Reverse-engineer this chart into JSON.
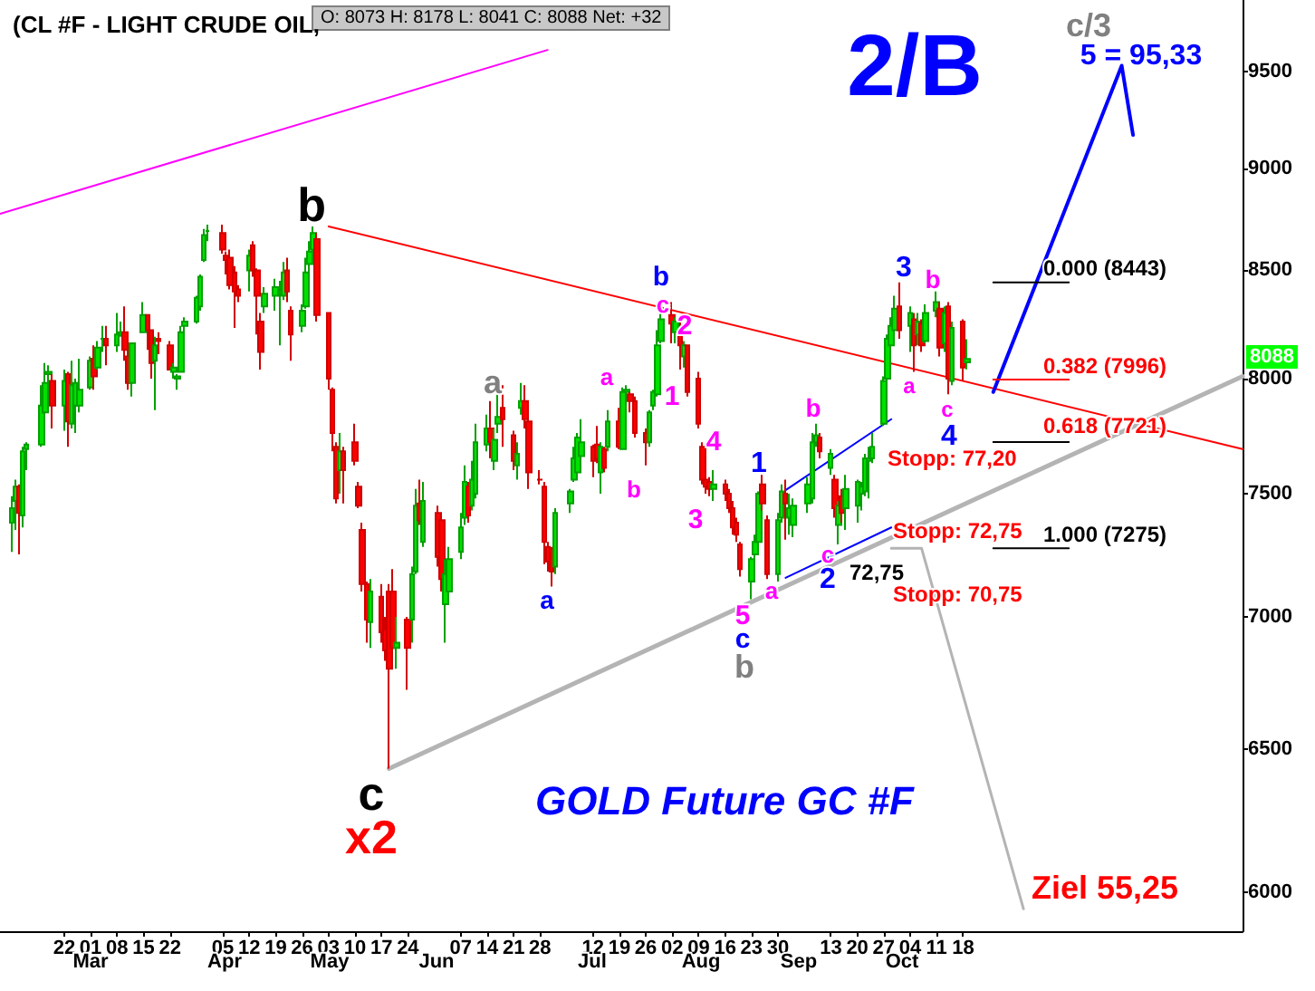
{
  "chart_data": {
    "type": "candlestick",
    "title": "(CL #F - LIGHT CRUDE OIL,",
    "subtitle": "O: 8073 H: 8178 L: 8041 C: 8088 Net: +32",
    "log": "y",
    "xlim": [
      "--02-05",
      "--12-31"
    ],
    "ylim": [
      5870,
      9890
    ],
    "yticks": [
      6000,
      6500,
      7000,
      7500,
      8000,
      8500,
      9000,
      9500
    ],
    "xticks": [
      {
        "value": "--02-22",
        "label": "22"
      },
      {
        "value": "--03-01",
        "label": "01"
      },
      {
        "value": "--03-08",
        "label": "08"
      },
      {
        "value": "--03-15",
        "label": "15"
      },
      {
        "value": "--03-22",
        "label": "22"
      },
      {
        "value": "--04-05",
        "label": "05"
      },
      {
        "value": "--04-12",
        "label": "12"
      },
      {
        "value": "--04-19",
        "label": "19"
      },
      {
        "value": "--04-26",
        "label": "26"
      },
      {
        "value": "--05-03",
        "label": "03"
      },
      {
        "value": "--05-10",
        "label": "10"
      },
      {
        "value": "--05-17",
        "label": "17"
      },
      {
        "value": "--05-24",
        "label": "24"
      },
      {
        "value": "--06-07",
        "label": "07"
      },
      {
        "value": "--06-14",
        "label": "14"
      },
      {
        "value": "--06-21",
        "label": "21"
      },
      {
        "value": "--06-28",
        "label": "28"
      },
      {
        "value": "--07-12",
        "label": "12"
      },
      {
        "value": "--07-19",
        "label": "19"
      },
      {
        "value": "--07-26",
        "label": "26"
      },
      {
        "value": "--08-02",
        "label": "02"
      },
      {
        "value": "--08-09",
        "label": "09"
      },
      {
        "value": "--08-16",
        "label": "16"
      },
      {
        "value": "--08-23",
        "label": "23"
      },
      {
        "value": "--08-30",
        "label": "30"
      },
      {
        "value": "--09-13",
        "label": "13"
      },
      {
        "value": "--09-20",
        "label": "20"
      },
      {
        "value": "--09-27",
        "label": "27"
      },
      {
        "value": "--10-04",
        "label": "04"
      },
      {
        "value": "--10-11",
        "label": "11"
      },
      {
        "value": "--10-18",
        "label": "18"
      }
    ],
    "x": [
      "--02-08",
      "--02-09",
      "--02-10",
      "--02-11",
      "--02-12",
      "--02-16",
      "--02-17",
      "--02-18",
      "--02-19",
      "--02-22",
      "--02-23",
      "--02-24",
      "--02-25",
      "--02-26",
      "--03-01",
      "--03-02",
      "--03-03",
      "--03-04",
      "--03-05",
      "--03-08",
      "--03-09",
      "--03-10",
      "--03-11",
      "--03-12",
      "--03-15",
      "--03-16",
      "--03-17",
      "--03-18",
      "--03-19",
      "--03-22",
      "--03-23",
      "--03-24",
      "--03-25",
      "--03-26",
      "--03-29",
      "--03-30",
      "--03-31",
      "--04-01",
      "--04-05",
      "--04-06",
      "--04-07",
      "--04-08",
      "--04-09",
      "--04-12",
      "--04-13",
      "--04-14",
      "--04-15",
      "--04-16",
      "--04-19",
      "--04-20",
      "--04-21",
      "--04-22",
      "--04-23",
      "--04-26",
      "--04-27",
      "--04-28",
      "--04-29",
      "--04-30",
      "--05-03",
      "--05-04",
      "--05-05",
      "--05-06",
      "--05-07",
      "--05-10",
      "--05-11",
      "--05-12",
      "--05-13",
      "--05-14",
      "--05-17",
      "--05-18",
      "--05-19",
      "--05-20",
      "--05-21",
      "--05-24",
      "--05-25",
      "--05-26",
      "--05-27",
      "--05-28",
      "--06-01",
      "--06-02",
      "--06-03",
      "--06-04",
      "--06-07",
      "--06-08",
      "--06-09",
      "--06-10",
      "--06-11",
      "--06-14",
      "--06-15",
      "--06-16",
      "--06-17",
      "--06-18",
      "--06-21",
      "--06-22",
      "--06-23",
      "--06-24",
      "--06-25",
      "--06-28",
      "--06-29",
      "--06-30",
      "--07-01",
      "--07-02",
      "--07-06",
      "--07-07",
      "--07-08",
      "--07-09",
      "--07-12",
      "--07-13",
      "--07-14",
      "--07-15",
      "--07-16",
      "--07-19",
      "--07-20",
      "--07-21",
      "--07-22",
      "--07-23",
      "--07-26",
      "--07-27",
      "--07-28",
      "--07-29",
      "--07-30",
      "--08-02",
      "--08-03",
      "--08-04",
      "--08-05",
      "--08-06",
      "--08-09",
      "--08-10",
      "--08-11",
      "--08-12",
      "--08-13",
      "--08-16",
      "--08-17",
      "--08-18",
      "--08-19",
      "--08-20",
      "--08-23",
      "--08-24",
      "--08-25",
      "--08-26",
      "--08-27",
      "--08-30",
      "--08-31",
      "--09-01",
      "--09-02",
      "--09-03",
      "--09-07",
      "--09-08",
      "--09-09",
      "--09-10",
      "--09-13",
      "--09-14",
      "--09-15",
      "--09-16",
      "--09-17",
      "--09-20",
      "--09-21",
      "--09-22",
      "--09-23",
      "--09-24",
      "--09-27",
      "--09-28",
      "--09-29",
      "--09-30",
      "--10-01",
      "--10-04",
      "--10-05",
      "--10-06",
      "--10-07",
      "--10-08",
      "--10-11",
      "--10-12",
      "--10-13",
      "--10-14",
      "--10-15",
      "--10-18",
      "--10-19"
    ],
    "ohlc": [
      [
        7380,
        7490,
        7260,
        7440
      ],
      [
        7470,
        7560,
        7350,
        7530
      ],
      [
        7530,
        7540,
        7250,
        7420
      ],
      [
        7410,
        7700,
        7360,
        7680
      ],
      [
        7690,
        7720,
        7600,
        7710
      ],
      [
        7710,
        7970,
        7700,
        7880
      ],
      [
        7850,
        8070,
        7750,
        7980
      ],
      [
        8020,
        8060,
        7950,
        8030
      ],
      [
        7990,
        8020,
        7780,
        7880
      ],
      [
        7880,
        8040,
        7770,
        7990
      ],
      [
        8020,
        8030,
        7700,
        7810
      ],
      [
        7800,
        8080,
        7780,
        7970
      ],
      [
        7880,
        8000,
        7760,
        7980
      ],
      [
        7880,
        8090,
        7850,
        7950
      ],
      [
        7960,
        8100,
        7950,
        8080
      ],
      [
        8090,
        8150,
        7950,
        8010
      ],
      [
        8050,
        8170,
        8040,
        8140
      ],
      [
        8180,
        8240,
        8120,
        8180
      ],
      [
        8180,
        8240,
        8060,
        8150
      ],
      [
        8150,
        8300,
        8120,
        8200
      ],
      [
        8200,
        8260,
        8190,
        8210
      ],
      [
        8210,
        8330,
        8080,
        8130
      ],
      [
        8100,
        8130,
        7950,
        7980
      ],
      [
        7980,
        8160,
        7920,
        8160
      ],
      [
        8210,
        8350,
        8210,
        8290
      ],
      [
        8290,
        8290,
        8130,
        8220
      ],
      [
        8220,
        8220,
        8000,
        8070
      ],
      [
        8080,
        8190,
        7860,
        8150
      ],
      [
        8180,
        8210,
        8110,
        8170
      ],
      [
        8150,
        8170,
        8040,
        8040
      ],
      [
        8030,
        8070,
        8000,
        8050
      ],
      [
        8000,
        8020,
        7950,
        8010
      ],
      [
        8030,
        8240,
        8030,
        8210
      ],
      [
        8240,
        8280,
        8170,
        8260
      ],
      [
        8260,
        8380,
        8250,
        8370
      ],
      [
        8330,
        8480,
        8310,
        8470
      ],
      [
        8550,
        8700,
        8540,
        8670
      ],
      [
        8690,
        8720,
        8640,
        8690
      ],
      [
        8680,
        8720,
        8580,
        8600
      ],
      [
        8570,
        8590,
        8480,
        8550
      ],
      [
        8560,
        8600,
        8410,
        8430
      ],
      [
        8490,
        8520,
        8230,
        8400
      ],
      [
        8410,
        8430,
        8350,
        8380
      ],
      [
        8500,
        8600,
        8400,
        8570
      ],
      [
        8620,
        8640,
        8470,
        8500
      ],
      [
        8500,
        8510,
        8200,
        8380
      ],
      [
        8260,
        8300,
        8040,
        8120
      ],
      [
        8330,
        8420,
        8300,
        8390
      ],
      [
        8380,
        8460,
        8310,
        8420
      ],
      [
        8390,
        8450,
        8150,
        8400
      ],
      [
        8380,
        8540,
        8360,
        8490
      ],
      [
        8500,
        8560,
        8350,
        8400
      ],
      [
        8310,
        8330,
        8080,
        8200
      ],
      [
        8240,
        8340,
        8210,
        8310
      ],
      [
        8330,
        8560,
        8320,
        8490
      ],
      [
        8530,
        8640,
        8490,
        8590
      ],
      [
        8600,
        8712,
        8570,
        8680
      ],
      [
        8650,
        8680,
        8260,
        8290
      ],
      [
        8300,
        8300,
        7950,
        8000
      ],
      [
        7950,
        7960,
        7680,
        7760
      ],
      [
        7700,
        7720,
        7460,
        7480
      ],
      [
        7600,
        7760,
        7500,
        7680
      ],
      [
        7680,
        7700,
        7460,
        7600
      ],
      [
        7720,
        7800,
        7620,
        7640
      ],
      [
        7530,
        7550,
        7440,
        7450
      ],
      [
        7350,
        7380,
        7100,
        7130
      ],
      [
        7130,
        7140,
        6900,
        6990
      ],
      [
        6980,
        7150,
        6880,
        7100
      ],
      [
        7080,
        7130,
        6900,
        6940
      ],
      [
        6950,
        7000,
        6830,
        6870
      ],
      [
        7100,
        7130,
        6430,
        6800
      ],
      [
        7100,
        7190,
        6800,
        6880
      ],
      [
        6880,
        7000,
        6800,
        6900
      ],
      [
        6990,
        7000,
        6720,
        6880
      ],
      [
        6990,
        7200,
        6900,
        7170
      ],
      [
        7180,
        7520,
        7170,
        7450
      ],
      [
        7460,
        7560,
        7370,
        7390
      ],
      [
        7300,
        7550,
        7280,
        7470
      ],
      [
        7420,
        7450,
        7200,
        7240
      ],
      [
        7390,
        7410,
        7100,
        7150
      ],
      [
        7050,
        7230,
        6900,
        7170
      ],
      [
        7100,
        7280,
        7050,
        7230
      ],
      [
        7260,
        7420,
        7230,
        7360
      ],
      [
        7400,
        7620,
        7370,
        7550
      ],
      [
        7530,
        7550,
        7380,
        7410
      ],
      [
        7450,
        7640,
        7430,
        7560
      ],
      [
        7500,
        7800,
        7480,
        7720
      ],
      [
        7710,
        7840,
        7680,
        7780
      ],
      [
        7780,
        7900,
        7650,
        7720
      ],
      [
        7640,
        7780,
        7600,
        7730
      ],
      [
        7800,
        7940,
        7760,
        7830
      ],
      [
        7870,
        7970,
        7700,
        7820
      ],
      [
        7750,
        7770,
        7600,
        7640
      ],
      [
        7620,
        7720,
        7560,
        7670
      ],
      [
        7870,
        7980,
        7840,
        7900
      ],
      [
        7900,
        7970,
        7780,
        7820
      ],
      [
        7810,
        7830,
        7520,
        7590
      ],
      [
        7560,
        7600,
        7540,
        7560
      ],
      [
        7530,
        7550,
        7210,
        7300
      ],
      [
        7280,
        7300,
        7180,
        7220
      ],
      [
        7270,
        7280,
        7120,
        7180
      ],
      [
        7200,
        7440,
        7170,
        7420
      ],
      [
        7460,
        7520,
        7420,
        7510
      ],
      [
        7560,
        7700,
        7550,
        7650
      ],
      [
        7590,
        7760,
        7560,
        7740
      ],
      [
        7660,
        7820,
        7600,
        7720
      ],
      [
        7700,
        7710,
        7570,
        7640
      ],
      [
        7710,
        7790,
        7630,
        7650
      ],
      [
        7590,
        7720,
        7500,
        7700
      ],
      [
        7690,
        7700,
        7590,
        7610
      ],
      [
        7700,
        7860,
        7680,
        7810
      ],
      [
        7810,
        7870,
        7690,
        7700
      ],
      [
        7690,
        7960,
        7690,
        7940
      ],
      [
        7940,
        7970,
        7900,
        7950
      ],
      [
        7930,
        7940,
        7850,
        7900
      ],
      [
        7900,
        7920,
        7740,
        7760
      ],
      [
        7760,
        7780,
        7620,
        7720
      ],
      [
        7720,
        7860,
        7700,
        7850
      ],
      [
        7880,
        7950,
        7860,
        7940
      ],
      [
        7930,
        8220,
        7920,
        8150
      ],
      [
        8170,
        8320,
        8160,
        8270
      ],
      [
        8290,
        8350,
        8160,
        8250
      ],
      [
        8210,
        8280,
        8160,
        8260
      ],
      [
        8200,
        8260,
        8040,
        8150
      ],
      [
        8100,
        8170,
        8050,
        8150
      ],
      [
        8150,
        8150,
        7920,
        7940
      ],
      [
        8000,
        8030,
        7780,
        7800
      ],
      [
        7700,
        7720,
        7540,
        7560
      ],
      [
        7560,
        7590,
        7500,
        7530
      ],
      [
        7550,
        7570,
        7490,
        7520
      ],
      [
        7520,
        7600,
        7470,
        7540
      ],
      [
        7540,
        7560,
        7470,
        7500
      ],
      [
        7500,
        7520,
        7420,
        7440
      ],
      [
        7440,
        7470,
        7330,
        7360
      ],
      [
        7380,
        7400,
        7300,
        7330
      ],
      [
        7290,
        7300,
        7160,
        7190
      ],
      [
        7140,
        7240,
        7070,
        7230
      ],
      [
        7250,
        7330,
        7230,
        7300
      ],
      [
        7300,
        7510,
        7280,
        7500
      ],
      [
        7540,
        7580,
        7430,
        7460
      ],
      [
        7390,
        7410,
        7150,
        7170
      ],
      [
        7170,
        7420,
        7140,
        7390
      ],
      [
        7400,
        7540,
        7380,
        7510
      ],
      [
        7500,
        7560,
        7310,
        7460
      ],
      [
        7400,
        7500,
        7330,
        7440
      ],
      [
        7370,
        7480,
        7320,
        7450
      ],
      [
        7460,
        7570,
        7420,
        7540
      ],
      [
        7480,
        7760,
        7460,
        7720
      ],
      [
        7720,
        7800,
        7700,
        7750
      ],
      [
        7740,
        7760,
        7650,
        7680
      ],
      [
        7610,
        7690,
        7580,
        7670
      ],
      [
        7560,
        7580,
        7400,
        7440
      ],
      [
        7370,
        7470,
        7290,
        7450
      ],
      [
        7490,
        7520,
        7380,
        7420
      ],
      [
        7440,
        7580,
        7350,
        7520
      ],
      [
        7450,
        7560,
        7380,
        7550
      ],
      [
        7500,
        7550,
        7430,
        7530
      ],
      [
        7510,
        7670,
        7490,
        7650
      ],
      [
        7640,
        7700,
        7480,
        7650
      ],
      [
        7650,
        7760,
        7630,
        7700
      ],
      [
        7800,
        8010,
        7790,
        7990
      ],
      [
        8000,
        8200,
        7990,
        8180
      ],
      [
        8150,
        8280,
        8100,
        8240
      ],
      [
        8220,
        8380,
        8170,
        8320
      ],
      [
        8330,
        8443,
        8180,
        8220
      ],
      [
        8240,
        8330,
        8120,
        8300
      ],
      [
        8270,
        8300,
        8030,
        8150
      ],
      [
        8200,
        8300,
        8150,
        8260
      ],
      [
        8250,
        8270,
        8120,
        8150
      ],
      [
        8170,
        8340,
        8160,
        8300
      ],
      [
        8310,
        8400,
        8280,
        8350
      ],
      [
        8320,
        8350,
        8100,
        8140
      ],
      [
        8160,
        8330,
        8120,
        8300
      ],
      [
        8330,
        8350,
        7930,
        8000
      ],
      [
        7990,
        8260,
        7970,
        8230
      ],
      [
        8260,
        8270,
        7990,
        8050
      ],
      [
        8073,
        8178,
        8041,
        8088
      ]
    ],
    "series": [
      {
        "type": "line",
        "color": "#ff00ff",
        "x": [
          "--02-05",
          "--06-30"
        ],
        "values": [
          8774,
          9617
        ]
      },
      {
        "type": "line",
        "color": "#ff0000",
        "x": [
          "--05-03",
          "--12-31"
        ],
        "values": [
          8712,
          7690
        ]
      },
      {
        "type": "line",
        "color": "#b4b4b4",
        "x": [
          "--05-19",
          "--12-31"
        ],
        "values": [
          6430,
          8010
        ]
      },
      {
        "type": "line",
        "color": "#0000ff",
        "x": [
          "--09-01",
          "--09-29"
        ],
        "values": [
          7515,
          7820
        ]
      },
      {
        "type": "line",
        "color": "#0000ff",
        "x": [
          "--09-01",
          "--09-29"
        ],
        "values": [
          7155,
          7360
        ]
      },
      {
        "type": "line",
        "color": "#0000ff",
        "x": [
          "--10-26",
          "--11-29",
          "--12-02"
        ],
        "values": [
          7940,
          9533,
          9170
        ]
      },
      {
        "type": "line",
        "color": "#000000",
        "x": [
          "--10-26",
          "--11-15"
        ],
        "values": [
          8443,
          8443
        ]
      },
      {
        "type": "line",
        "color": "#ff0000",
        "x": [
          "--10-26",
          "--11-15"
        ],
        "values": [
          7996,
          7996
        ]
      },
      {
        "type": "line",
        "color": "#000000",
        "x": [
          "--10-26",
          "--11-15"
        ],
        "values": [
          7721,
          7721
        ]
      },
      {
        "type": "line",
        "color": "#000000",
        "x": [
          "--10-26",
          "--11-15"
        ],
        "values": [
          7275,
          7275
        ]
      },
      {
        "type": "line",
        "color": "#b4b4b4",
        "x": [
          "--09-29",
          "--10-07",
          "--11-03"
        ],
        "values": [
          7275,
          7275,
          5944
        ]
      }
    ],
    "annotations": [
      "b",
      "c",
      "x2",
      "a",
      "a",
      "a",
      "b",
      "b",
      "c",
      "2",
      "1",
      "4",
      "3",
      "5",
      "c",
      "b",
      "1",
      "a",
      "b",
      "c",
      "2",
      "72,75",
      "3",
      "b",
      "a",
      "c",
      "4",
      "0.000 (8443)",
      "0.382 (7996)",
      "0.618 (7721)",
      "1.000 (7275)",
      "Stopp: 77,20",
      "Stopp: 72,75",
      "Stopp: 70,75",
      "c/3",
      "5 = 95,33",
      "Ziel 55,25",
      "2/B",
      "GOLD Future GC #F",
      "8088",
      "Mar",
      "Apr",
      "May",
      "Jun",
      "Jul",
      "Aug",
      "Sep",
      "Oct"
    ]
  }
}
